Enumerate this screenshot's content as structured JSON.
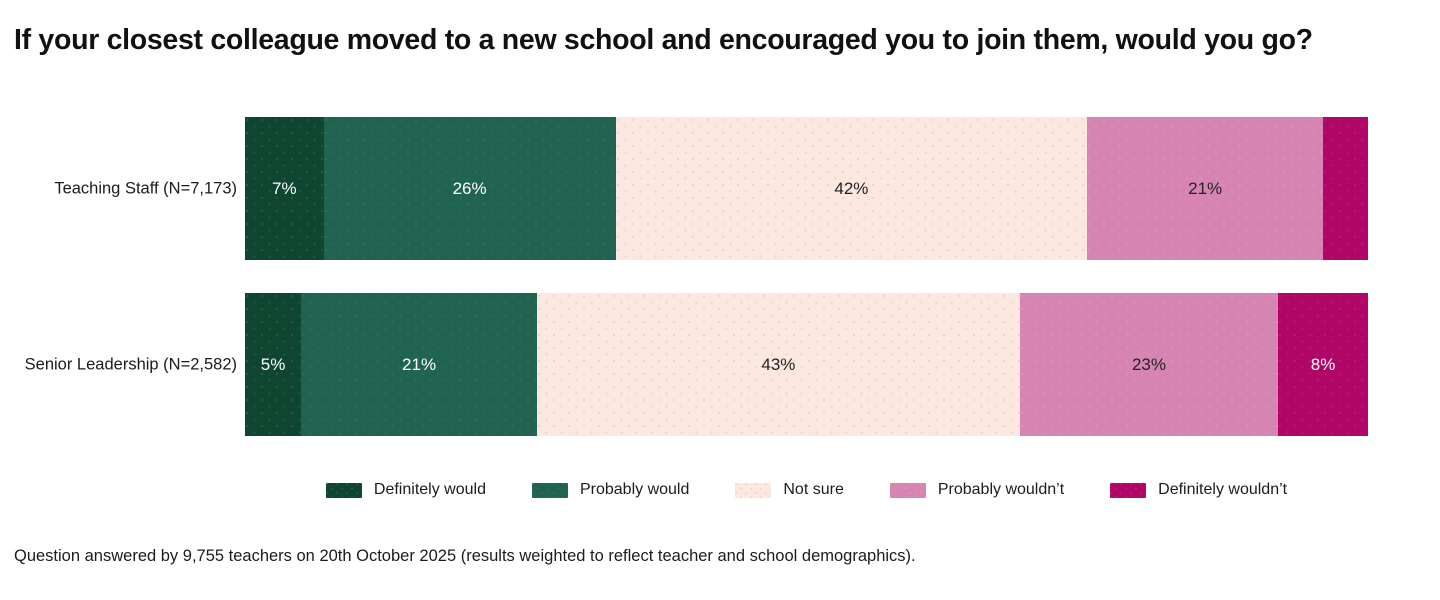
{
  "title": "If your closest colleague moved to a new school and encouraged you to join them, would you go?",
  "footnote": "Question answered by 9,755 teachers on 20th October 2025 (results weighted to reflect teacher and school demographics).",
  "chart_data": {
    "type": "bar",
    "variant": "horizontal-stacked",
    "xlim": [
      0,
      100
    ],
    "legend_position": "bottom-center",
    "rows": [
      {
        "label": "Teaching Staff (N=7,173)",
        "segments": [
          {
            "category": "Definitely would",
            "value": 7,
            "label": "7%"
          },
          {
            "category": "Probably would",
            "value": 26,
            "label": "26%"
          },
          {
            "category": "Not sure",
            "value": 42,
            "label": "42%"
          },
          {
            "category": "Probably wouldn’t",
            "value": 21,
            "label": "21%"
          },
          {
            "category": "Definitely wouldn’t",
            "value": 4,
            "label": ""
          }
        ]
      },
      {
        "label": "Senior Leadership (N=2,582)",
        "segments": [
          {
            "category": "Definitely would",
            "value": 5,
            "label": "5%"
          },
          {
            "category": "Probably would",
            "value": 21,
            "label": "21%"
          },
          {
            "category": "Not sure",
            "value": 43,
            "label": "43%"
          },
          {
            "category": "Probably wouldn’t",
            "value": 23,
            "label": "23%"
          },
          {
            "category": "Definitely wouldn’t",
            "value": 8,
            "label": "8%"
          }
        ]
      }
    ],
    "legend": [
      {
        "label": "Definitely would",
        "color": "#0E4632",
        "text_color": "#FFFFFF",
        "dot_color": "rgba(255,255,255,0.10)"
      },
      {
        "label": "Probably would",
        "color": "#216351",
        "text_color": "#FFFFFF",
        "dot_color": "rgba(255,255,255,0.06)"
      },
      {
        "label": "Not sure",
        "color": "#FBE9E1",
        "text_color": "#232323",
        "dot_color": "rgba(219,150,129,0.30)"
      },
      {
        "label": "Probably wouldn’t",
        "color": "#D685B2",
        "text_color": "#232323",
        "dot_color": "rgba(255,255,255,0.10)"
      },
      {
        "label": "Definitely wouldn’t",
        "color": "#B00668",
        "text_color": "#FFFFFF",
        "dot_color": "rgba(255,255,255,0.08)"
      }
    ]
  }
}
